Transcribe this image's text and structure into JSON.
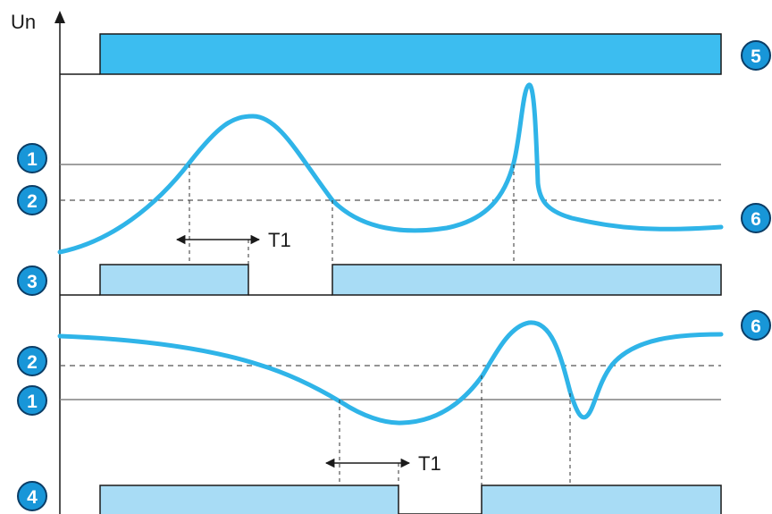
{
  "axis": {
    "y_label": "Un"
  },
  "badges": {
    "b1": "1",
    "b2": "2",
    "b3": "3",
    "b4": "4",
    "b5": "5",
    "b6": "6"
  },
  "timers": {
    "upper": "T1",
    "lower": "T1"
  },
  "colors": {
    "signal": "#2fb4e8",
    "supply_fill": "#3cbdf0",
    "output_fill": "#a8dcf5",
    "badge": "#1896d8",
    "line": "#1a1a1a",
    "threshold": "#808080"
  }
}
